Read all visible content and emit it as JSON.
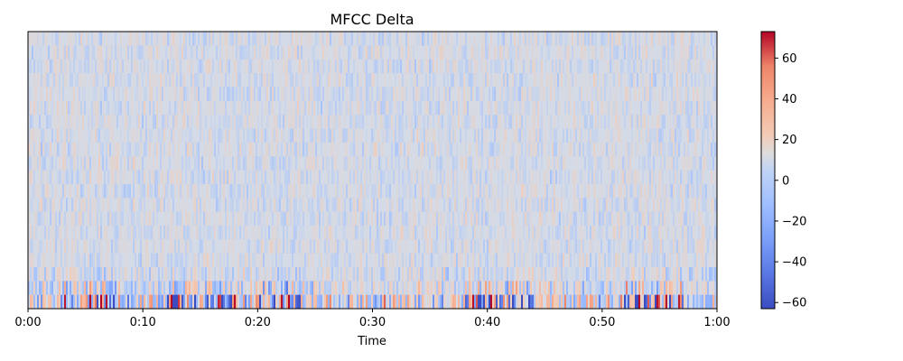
{
  "chart_data": {
    "type": "heatmap",
    "title": "MFCC Delta",
    "xlabel": "Time",
    "ylabel": "",
    "x_tick_labels": [
      "0:00",
      "0:10",
      "0:20",
      "0:30",
      "0:40",
      "0:50",
      "1:00"
    ],
    "x_range_seconds": [
      0,
      60
    ],
    "n_coefficients": 20,
    "colormap": "coolwarm",
    "colorbar": {
      "range": [
        -63,
        73
      ],
      "ticks": [
        -60,
        -40,
        -20,
        0,
        20,
        40,
        60
      ],
      "tick_labels": [
        "−60",
        "−40",
        "−20",
        "0",
        "20",
        "40",
        "60"
      ]
    },
    "grid": false,
    "legend": "none"
  }
}
